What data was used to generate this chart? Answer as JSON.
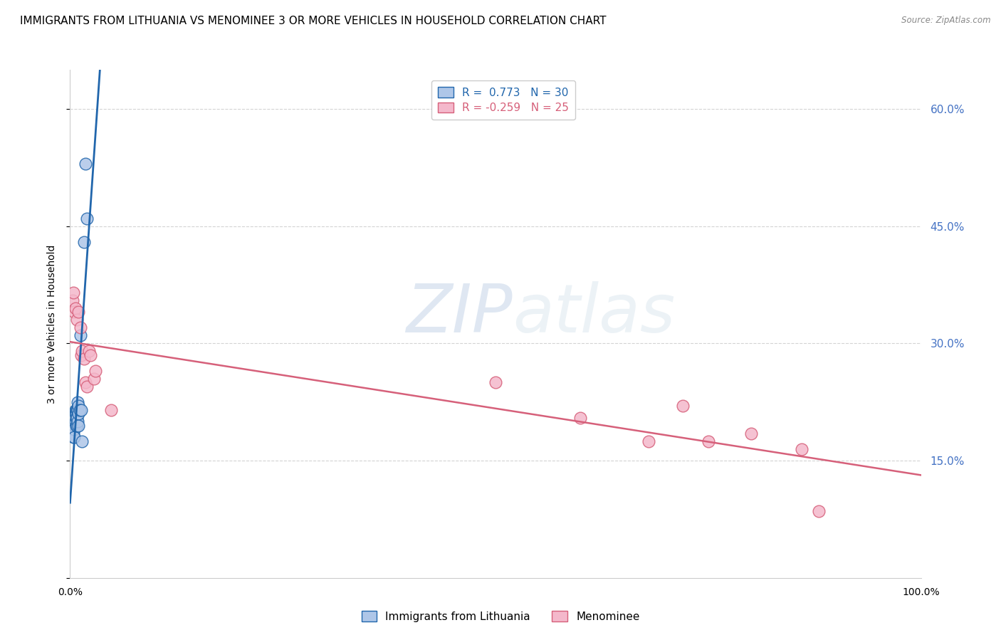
{
  "title": "IMMIGRANTS FROM LITHUANIA VS MENOMINEE 3 OR MORE VEHICLES IN HOUSEHOLD CORRELATION CHART",
  "source": "Source: ZipAtlas.com",
  "ylabel": "3 or more Vehicles in Household",
  "xlabel": "",
  "watermark_zip": "ZIP",
  "watermark_atlas": "atlas",
  "blue_R": 0.773,
  "blue_N": 30,
  "pink_R": -0.259,
  "pink_N": 25,
  "xlim": [
    0,
    1.0
  ],
  "ylim": [
    0,
    0.65
  ],
  "xticks": [
    0.0,
    0.2,
    0.4,
    0.6,
    0.8,
    1.0
  ],
  "xticklabels": [
    "0.0%",
    "",
    "",
    "",
    "",
    "100.0%"
  ],
  "yticks": [
    0.0,
    0.15,
    0.3,
    0.45,
    0.6
  ],
  "yticklabels": [
    "",
    "15.0%",
    "30.0%",
    "45.0%",
    "60.0%"
  ],
  "blue_x": [
    0.002,
    0.003,
    0.004,
    0.004,
    0.005,
    0.005,
    0.005,
    0.006,
    0.006,
    0.006,
    0.007,
    0.007,
    0.007,
    0.007,
    0.008,
    0.008,
    0.008,
    0.009,
    0.009,
    0.009,
    0.01,
    0.01,
    0.01,
    0.011,
    0.012,
    0.013,
    0.014,
    0.016,
    0.018,
    0.02
  ],
  "blue_y": [
    0.195,
    0.185,
    0.185,
    0.18,
    0.195,
    0.19,
    0.18,
    0.215,
    0.21,
    0.2,
    0.215,
    0.21,
    0.205,
    0.195,
    0.215,
    0.205,
    0.195,
    0.225,
    0.215,
    0.2,
    0.22,
    0.21,
    0.195,
    0.215,
    0.31,
    0.215,
    0.175,
    0.43,
    0.53,
    0.46
  ],
  "pink_x": [
    0.003,
    0.004,
    0.005,
    0.006,
    0.008,
    0.01,
    0.012,
    0.013,
    0.014,
    0.016,
    0.018,
    0.02,
    0.022,
    0.024,
    0.028,
    0.03,
    0.048,
    0.5,
    0.6,
    0.68,
    0.72,
    0.75,
    0.8,
    0.86,
    0.88
  ],
  "pink_y": [
    0.355,
    0.365,
    0.34,
    0.345,
    0.33,
    0.34,
    0.32,
    0.285,
    0.29,
    0.28,
    0.25,
    0.245,
    0.29,
    0.285,
    0.255,
    0.265,
    0.215,
    0.25,
    0.205,
    0.175,
    0.22,
    0.175,
    0.185,
    0.165,
    0.085
  ],
  "legend_label_blue": "Immigrants from Lithuania",
  "legend_label_pink": "Menominee",
  "blue_color": "#aec6e8",
  "blue_line_color": "#2166ac",
  "pink_color": "#f4b8cb",
  "pink_line_color": "#d6607a",
  "right_ytick_color": "#4472c4",
  "grid_color": "#d3d3d3",
  "title_fontsize": 11,
  "axis_fontsize": 10,
  "tick_fontsize": 10,
  "legend_fontsize": 11,
  "marker_size": 11
}
